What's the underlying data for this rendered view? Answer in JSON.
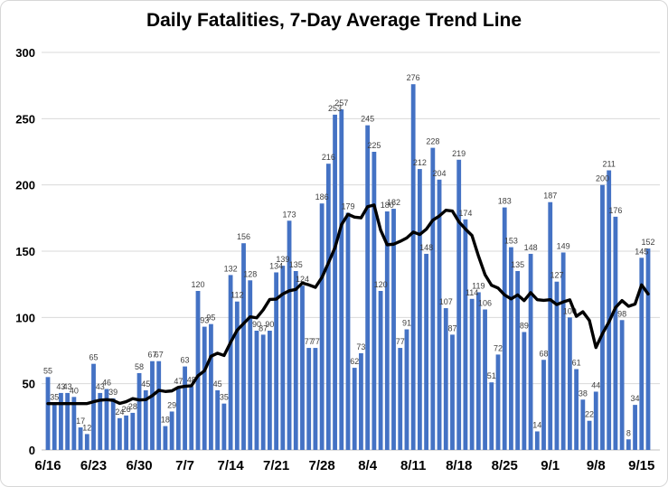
{
  "chart_data": {
    "type": "bar",
    "title": "Daily Fatalities, 7-Day Average Trend Line",
    "x_tick_labels": [
      "6/16",
      "6/23",
      "6/30",
      "7/7",
      "7/14",
      "7/21",
      "7/28",
      "8/4",
      "8/11",
      "8/18",
      "8/25",
      "9/1",
      "9/8",
      "9/15"
    ],
    "tick_interval_days": 7,
    "y_ticks": [
      0,
      50,
      100,
      150,
      200,
      250,
      300
    ],
    "ylim": [
      0,
      300
    ],
    "grid": true,
    "data_labels": true,
    "bar_color": "#4472C4",
    "line_color": "#000000",
    "gridline_color": "#d9d9d9",
    "axis_line_color": "#bfbfbf",
    "values": [
      55,
      35,
      43,
      43,
      40,
      17,
      12,
      65,
      43,
      46,
      39,
      24,
      26,
      28,
      58,
      45,
      67,
      67,
      18,
      29,
      47,
      63,
      48,
      120,
      93,
      95,
      45,
      35,
      132,
      112,
      156,
      128,
      90,
      87,
      90,
      134,
      139,
      173,
      135,
      124,
      77,
      77,
      186,
      216,
      253,
      257,
      179,
      62,
      73,
      245,
      225,
      120,
      180,
      182,
      77,
      91,
      276,
      212,
      148,
      228,
      204,
      107,
      87,
      219,
      174,
      114,
      119,
      106,
      51,
      72,
      183,
      153,
      135,
      89,
      148,
      14,
      68,
      187,
      127,
      149,
      100,
      61,
      38,
      22,
      44,
      200,
      211,
      176,
      98,
      8,
      34,
      145,
      152
    ],
    "series": [
      {
        "name": "Daily fatalities",
        "type": "bar"
      },
      {
        "name": "7-day average trend line",
        "type": "line",
        "derivation": "trailing 7-day average of values"
      }
    ]
  }
}
